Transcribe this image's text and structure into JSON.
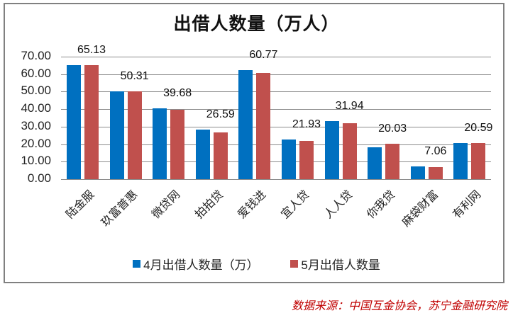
{
  "chart_data": {
    "type": "bar",
    "title": "出借人数量（万人）",
    "xlabel": "",
    "ylabel": "",
    "ylim": [
      0,
      70
    ],
    "yticks": [
      "0.00",
      "10.00",
      "20.00",
      "30.00",
      "40.00",
      "50.00",
      "60.00",
      "70.00"
    ],
    "grid": true,
    "legend_position": "bottom",
    "categories": [
      "陆金服",
      "玖富普惠",
      "微贷网",
      "拍拍贷",
      "爱钱进",
      "宜人贷",
      "人人贷",
      "你我贷",
      "麻袋财富",
      "有利网"
    ],
    "series": [
      {
        "name": "4月出借人数量（万）",
        "color": "#0070C0",
        "values": [
          65.0,
          50.2,
          40.5,
          28.3,
          62.3,
          22.7,
          33.2,
          18.2,
          7.3,
          20.6
        ]
      },
      {
        "name": "5月出借人数量",
        "color": "#C0504D",
        "values": [
          65.13,
          50.31,
          39.68,
          26.59,
          60.77,
          21.93,
          31.94,
          20.03,
          7.06,
          20.59
        ]
      }
    ],
    "data_labels": [
      "65.13",
      "50.31",
      "39.68",
      "26.59",
      "60.77",
      "21.93",
      "31.94",
      "20.03",
      "7.06",
      "20.59"
    ]
  },
  "footer": {
    "source": "数据来源：中国互金协会，苏宁金融研究院"
  }
}
